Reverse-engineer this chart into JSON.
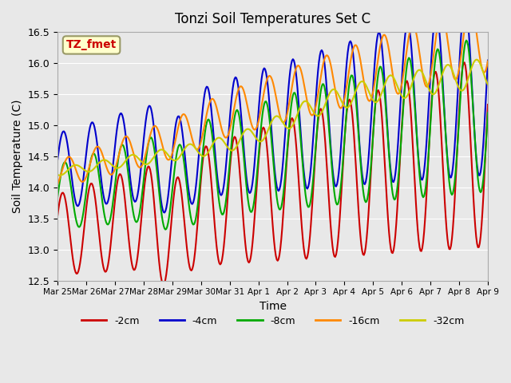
{
  "title": "Tonzi Soil Temperatures Set C",
  "xlabel": "Time",
  "ylabel": "Soil Temperature (C)",
  "ylim": [
    12.5,
    16.5
  ],
  "bg_color": "#e8e8e8",
  "legend_label": "TZ_fmet",
  "legend_text_color": "#cc0000",
  "legend_box_color": "#ffffcc",
  "legend_box_edge": "#999966",
  "series_colors": {
    "-2cm": "#cc0000",
    "-4cm": "#0000cc",
    "-8cm": "#00aa00",
    "-16cm": "#ff8800",
    "-32cm": "#cccc00"
  },
  "line_width": 1.5,
  "xtick_labels": [
    "Mar 25",
    "Mar 26",
    "Mar 27",
    "Mar 28",
    "Mar 29",
    "Mar 30",
    "Mar 31",
    "Apr 1",
    "Apr 2",
    "Apr 3",
    "Apr 4",
    "Apr 5",
    "Apr 6",
    "Apr 7",
    "Apr 8",
    "Apr 9"
  ],
  "ytick_values": [
    12.5,
    13.0,
    13.5,
    14.0,
    14.5,
    15.0,
    15.5,
    16.0,
    16.5
  ],
  "n_points": 480
}
